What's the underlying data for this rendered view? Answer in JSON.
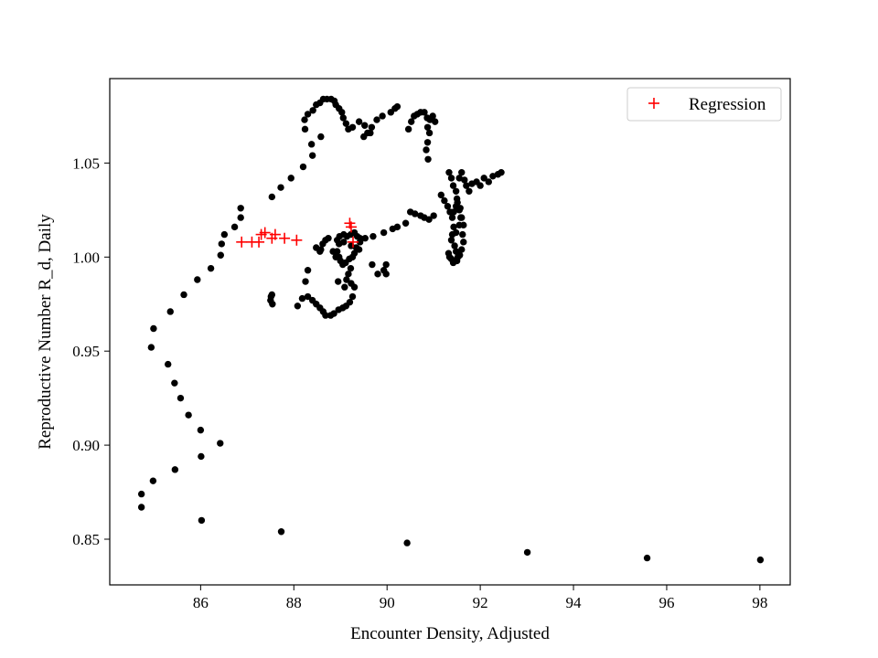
{
  "chart_data": {
    "type": "scatter",
    "xlabel": "Encounter Density, Adjusted",
    "ylabel": "Reproductive Number R_d, Daily",
    "xlim": [
      84.05,
      98.65
    ],
    "ylim": [
      0.8257,
      1.0949
    ],
    "xticks": [
      86,
      88,
      90,
      92,
      94,
      96,
      98
    ],
    "yticks": [
      0.85,
      0.9,
      0.95,
      1.0,
      1.05
    ],
    "ytick_labels": [
      "0.85",
      "0.90",
      "0.95",
      "1.00",
      "1.05"
    ],
    "xtick_labels": [
      "86",
      "88",
      "90",
      "92",
      "94",
      "96",
      "98"
    ],
    "legend": {
      "placement": "upper-right",
      "entries": [
        "Regression"
      ]
    },
    "grid": false,
    "colors": {
      "observed": "#000000",
      "regression": "#ff0000"
    },
    "series": [
      {
        "marker": "dot",
        "points": [
          [
            84.73,
            0.867
          ],
          [
            84.73,
            0.874
          ],
          [
            84.98,
            0.881
          ],
          [
            85.45,
            0.887
          ],
          [
            86.02,
            0.86
          ],
          [
            87.73,
            0.854
          ],
          [
            90.43,
            0.848
          ],
          [
            93.01,
            0.843
          ],
          [
            95.58,
            0.84
          ],
          [
            98.01,
            0.839
          ],
          [
            86.01,
            0.894
          ],
          [
            86.0,
            0.908
          ],
          [
            86.42,
            0.901
          ],
          [
            85.74,
            0.916
          ],
          [
            85.57,
            0.925
          ],
          [
            85.44,
            0.933
          ],
          [
            85.3,
            0.943
          ],
          [
            84.94,
            0.952
          ],
          [
            84.99,
            0.962
          ],
          [
            85.35,
            0.971
          ],
          [
            85.64,
            0.98
          ],
          [
            85.93,
            0.988
          ],
          [
            86.22,
            0.994
          ],
          [
            86.43,
            1.001
          ],
          [
            86.45,
            1.007
          ],
          [
            86.51,
            1.012
          ],
          [
            86.73,
            1.016
          ],
          [
            86.86,
            1.021
          ],
          [
            86.86,
            1.026
          ],
          [
            87.53,
            1.032
          ],
          [
            87.72,
            1.037
          ],
          [
            87.94,
            1.042
          ],
          [
            88.2,
            1.048
          ],
          [
            88.4,
            1.054
          ],
          [
            88.38,
            1.06
          ],
          [
            88.58,
            1.064
          ],
          [
            88.24,
            1.068
          ],
          [
            88.23,
            1.073
          ],
          [
            88.3,
            1.076
          ],
          [
            88.41,
            1.078
          ],
          [
            88.48,
            1.081
          ],
          [
            88.56,
            1.082
          ],
          [
            88.63,
            1.084
          ],
          [
            88.71,
            1.084
          ],
          [
            88.8,
            1.084
          ],
          [
            88.87,
            1.083
          ],
          [
            88.9,
            1.081
          ],
          [
            88.97,
            1.079
          ],
          [
            89.03,
            1.077
          ],
          [
            89.06,
            1.074
          ],
          [
            89.12,
            1.071
          ],
          [
            89.17,
            1.068
          ],
          [
            89.26,
            1.069
          ],
          [
            89.4,
            1.072
          ],
          [
            89.52,
            1.07
          ],
          [
            89.58,
            1.066
          ],
          [
            89.5,
            1.064
          ],
          [
            89.64,
            1.066
          ],
          [
            89.67,
            1.069
          ],
          [
            89.78,
            1.073
          ],
          [
            89.9,
            1.075
          ],
          [
            90.08,
            1.077
          ],
          [
            90.17,
            1.079
          ],
          [
            90.22,
            1.08
          ],
          [
            90.46,
            1.068
          ],
          [
            90.52,
            1.072
          ],
          [
            90.58,
            1.075
          ],
          [
            90.65,
            1.076
          ],
          [
            90.72,
            1.077
          ],
          [
            90.8,
            1.077
          ],
          [
            90.86,
            1.074
          ],
          [
            90.92,
            1.073
          ],
          [
            90.98,
            1.075
          ],
          [
            91.03,
            1.072
          ],
          [
            90.87,
            1.069
          ],
          [
            90.91,
            1.066
          ],
          [
            90.87,
            1.061
          ],
          [
            90.84,
            1.057
          ],
          [
            90.88,
            1.052
          ],
          [
            91.33,
            1.045
          ],
          [
            91.38,
            1.042
          ],
          [
            91.42,
            1.038
          ],
          [
            91.48,
            1.035
          ],
          [
            91.5,
            1.031
          ],
          [
            91.55,
            1.042
          ],
          [
            91.6,
            1.045
          ],
          [
            91.66,
            1.041
          ],
          [
            91.7,
            1.038
          ],
          [
            91.76,
            1.035
          ],
          [
            91.82,
            1.039
          ],
          [
            91.92,
            1.04
          ],
          [
            92.0,
            1.038
          ],
          [
            92.08,
            1.042
          ],
          [
            92.18,
            1.04
          ],
          [
            92.27,
            1.043
          ],
          [
            92.38,
            1.044
          ],
          [
            92.45,
            1.045
          ],
          [
            91.16,
            1.033
          ],
          [
            91.23,
            1.03
          ],
          [
            91.3,
            1.027
          ],
          [
            91.35,
            1.024
          ],
          [
            91.4,
            1.021
          ],
          [
            91.43,
            1.024
          ],
          [
            91.48,
            1.027
          ],
          [
            91.55,
            1.025
          ],
          [
            91.58,
            1.021
          ],
          [
            91.55,
            1.017
          ],
          [
            91.48,
            1.013
          ],
          [
            91.43,
            1.016
          ],
          [
            91.4,
            1.012
          ],
          [
            91.38,
            1.009
          ],
          [
            91.45,
            1.006
          ],
          [
            91.48,
            1.003
          ],
          [
            91.52,
            1.0
          ],
          [
            91.45,
            0.998
          ],
          [
            91.38,
            0.999
          ],
          [
            91.34,
            1.0
          ],
          [
            91.32,
            1.002
          ],
          [
            91.42,
            0.997
          ],
          [
            91.5,
            0.998
          ],
          [
            91.56,
            1.001
          ],
          [
            91.6,
            1.004
          ],
          [
            91.64,
            1.008
          ],
          [
            91.62,
            1.012
          ],
          [
            91.64,
            1.017
          ],
          [
            91.6,
            1.021
          ],
          [
            91.57,
            1.026
          ],
          [
            91.51,
            1.029
          ],
          [
            91.0,
            1.022
          ],
          [
            90.9,
            1.02
          ],
          [
            90.8,
            1.021
          ],
          [
            90.72,
            1.022
          ],
          [
            90.6,
            1.023
          ],
          [
            90.5,
            1.024
          ],
          [
            90.4,
            1.018
          ],
          [
            90.22,
            1.016
          ],
          [
            90.12,
            1.015
          ],
          [
            89.93,
            1.013
          ],
          [
            89.7,
            1.011
          ],
          [
            89.53,
            1.01
          ],
          [
            89.42,
            1.01
          ],
          [
            89.36,
            1.011
          ],
          [
            89.3,
            1.013
          ],
          [
            89.22,
            1.012
          ],
          [
            89.14,
            1.011
          ],
          [
            89.07,
            1.012
          ],
          [
            88.98,
            1.011
          ],
          [
            88.93,
            1.009
          ],
          [
            89.07,
            1.008
          ],
          [
            89.23,
            1.006
          ],
          [
            89.34,
            1.005
          ],
          [
            89.4,
            1.004
          ],
          [
            89.3,
            1.002
          ],
          [
            89.26,
            1.0
          ],
          [
            89.19,
            0.999
          ],
          [
            89.11,
            0.997
          ],
          [
            89.05,
            0.996
          ],
          [
            89.0,
            0.998
          ],
          [
            88.97,
            1.0
          ],
          [
            88.93,
            1.003
          ],
          [
            88.97,
            1.007
          ],
          [
            89.22,
            0.994
          ],
          [
            89.17,
            0.991
          ],
          [
            89.13,
            0.988
          ],
          [
            89.23,
            0.986
          ],
          [
            89.3,
            0.984
          ],
          [
            89.26,
            0.979
          ],
          [
            89.2,
            0.976
          ],
          [
            89.12,
            0.974
          ],
          [
            89.05,
            0.973
          ],
          [
            88.96,
            0.972
          ],
          [
            88.86,
            0.97
          ],
          [
            88.79,
            0.969
          ],
          [
            88.68,
            0.969
          ],
          [
            88.63,
            0.971
          ],
          [
            88.56,
            0.973
          ],
          [
            88.48,
            0.975
          ],
          [
            88.4,
            0.977
          ],
          [
            88.3,
            0.979
          ],
          [
            88.18,
            0.978
          ],
          [
            88.08,
            0.974
          ],
          [
            88.25,
            0.987
          ],
          [
            88.3,
            0.993
          ],
          [
            87.54,
            0.975
          ],
          [
            87.5,
            0.977
          ],
          [
            87.51,
            0.979
          ],
          [
            87.53,
            0.98
          ],
          [
            88.48,
            1.005
          ],
          [
            88.58,
            1.004
          ],
          [
            88.62,
            1.007
          ],
          [
            88.68,
            1.009
          ],
          [
            88.74,
            1.01
          ],
          [
            88.56,
            1.003
          ],
          [
            88.84,
            1.003
          ],
          [
            88.9,
            1.0
          ],
          [
            88.95,
            0.987
          ],
          [
            89.09,
            0.984
          ],
          [
            89.8,
            0.991
          ],
          [
            89.68,
            0.996
          ],
          [
            89.93,
            0.993
          ],
          [
            89.98,
            0.996
          ],
          [
            89.98,
            0.991
          ],
          [
            89.42,
            1.008
          ]
        ]
      },
      {
        "name": "Regression",
        "marker": "plus",
        "points": [
          [
            86.88,
            1.008
          ],
          [
            87.1,
            1.008
          ],
          [
            87.25,
            1.008
          ],
          [
            87.3,
            1.012
          ],
          [
            87.38,
            1.013
          ],
          [
            87.53,
            1.01
          ],
          [
            87.6,
            1.012
          ],
          [
            87.8,
            1.01
          ],
          [
            88.06,
            1.009
          ],
          [
            89.2,
            1.018
          ],
          [
            89.23,
            1.016
          ],
          [
            89.27,
            1.008
          ]
        ]
      }
    ]
  }
}
